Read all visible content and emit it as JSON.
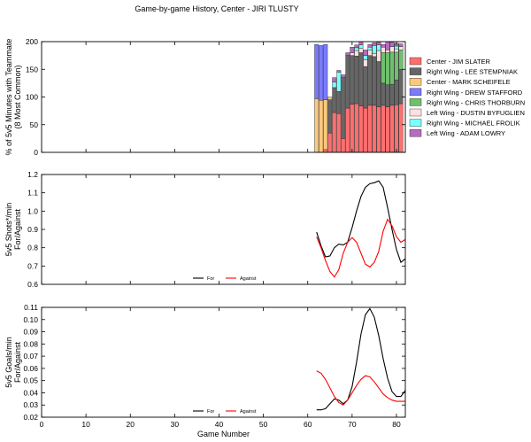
{
  "title": "Game-by-game History, Center - JIRI TLUSTY",
  "colors": {
    "for_line": "#000000",
    "against_line": "#ff0000"
  },
  "chart_data": [
    {
      "type": "bar",
      "stacked": true,
      "ylabel": "% of 5v5 Minutes with Teammate\n(8 Most Common)",
      "xlim": [
        0,
        82
      ],
      "ylim": [
        0,
        200
      ],
      "yticks": [
        "0",
        "50",
        "100",
        "150",
        "200"
      ],
      "x": [
        62,
        63,
        64,
        65,
        66,
        67,
        68,
        69,
        70,
        71,
        72,
        73,
        74,
        75,
        76,
        77,
        78,
        79,
        80,
        81
      ],
      "series": [
        {
          "name": "Center - JIM SLATER",
          "color": "#ff6f6f",
          "values": [
            0,
            0,
            5,
            35,
            72,
            70,
            25,
            80,
            87,
            88,
            84,
            80,
            85,
            85,
            82,
            85,
            82,
            85,
            86,
            88
          ]
        },
        {
          "name": "Right Wing - LEE STEMPNIAK",
          "color": "#666666",
          "values": [
            0,
            0,
            0,
            60,
            45,
            40,
            110,
            95,
            88,
            86,
            96,
            75,
            90,
            88,
            82,
            40,
            40,
            38,
            45,
            62
          ]
        },
        {
          "name": "Center - MARK SCHEIFELE",
          "color": "#fbc97e",
          "values": [
            97,
            94,
            90,
            5,
            0,
            0,
            0,
            0,
            0,
            0,
            0,
            0,
            0,
            0,
            0,
            0,
            0,
            0,
            0,
            0
          ]
        },
        {
          "name": "Right Wing - DREW STAFFORD",
          "color": "#7b7bff",
          "values": [
            98,
            99,
            100,
            0,
            0,
            0,
            0,
            0,
            0,
            0,
            0,
            0,
            0,
            0,
            0,
            0,
            0,
            0,
            0,
            0
          ]
        },
        {
          "name": "Right Wing - CHRIS THORBURN",
          "color": "#6fbf6f",
          "values": [
            0,
            0,
            0,
            0,
            0,
            0,
            0,
            0,
            0,
            0,
            0,
            0,
            0,
            0,
            0,
            55,
            58,
            58,
            50,
            35
          ]
        },
        {
          "name": "Left Wing - DUSTIN BYFUGLIEN",
          "color": "#ffe0e0",
          "values": [
            0,
            0,
            0,
            0,
            0,
            0,
            0,
            0,
            5,
            10,
            8,
            12,
            10,
            5,
            20,
            10,
            5,
            10,
            6,
            6
          ]
        },
        {
          "name": "Right Wing - MICHAEL FROLIK",
          "color": "#7bffff",
          "values": [
            0,
            0,
            0,
            0,
            10,
            35,
            0,
            0,
            0,
            5,
            6,
            8,
            5,
            15,
            10,
            0,
            0,
            0,
            5,
            0
          ]
        },
        {
          "name": "Left Wing - ADAM LOWRY",
          "color": "#b86bbf",
          "values": [
            0,
            0,
            0,
            0,
            8,
            3,
            5,
            5,
            10,
            5,
            6,
            10,
            5,
            5,
            5,
            5,
            15,
            8,
            5,
            5
          ]
        }
      ]
    },
    {
      "type": "line",
      "ylabel": "5v5 Shots*/min\nFor/Against",
      "xlim": [
        0,
        82
      ],
      "ylim": [
        0.6,
        1.2
      ],
      "yticks": [
        "0.6",
        "0.7",
        "0.8",
        "0.9",
        "1.0",
        "1.1",
        "1.2"
      ],
      "series": [
        {
          "name": "For",
          "points": [
            [
              62,
              0.885
            ],
            [
              63,
              0.81
            ],
            [
              64,
              0.75
            ],
            [
              65,
              0.755
            ],
            [
              66,
              0.8
            ],
            [
              67,
              0.82
            ],
            [
              68,
              0.815
            ],
            [
              69,
              0.83
            ],
            [
              70,
              0.91
            ],
            [
              71,
              1.0
            ],
            [
              72,
              1.08
            ],
            [
              73,
              1.13
            ],
            [
              74,
              1.15
            ],
            [
              75,
              1.155
            ],
            [
              76,
              1.165
            ],
            [
              77,
              1.13
            ],
            [
              78,
              1.02
            ],
            [
              79,
              0.9
            ],
            [
              80,
              0.79
            ],
            [
              81,
              0.72
            ],
            [
              82,
              0.74
            ]
          ]
        },
        {
          "name": "Against",
          "points": [
            [
              62,
              0.86
            ],
            [
              63,
              0.8
            ],
            [
              64,
              0.73
            ],
            [
              65,
              0.67
            ],
            [
              66,
              0.64
            ],
            [
              67,
              0.68
            ],
            [
              68,
              0.77
            ],
            [
              69,
              0.83
            ],
            [
              70,
              0.855
            ],
            [
              71,
              0.83
            ],
            [
              72,
              0.77
            ],
            [
              73,
              0.71
            ],
            [
              74,
              0.695
            ],
            [
              75,
              0.72
            ],
            [
              76,
              0.78
            ],
            [
              77,
              0.89
            ],
            [
              78,
              0.955
            ],
            [
              79,
              0.92
            ],
            [
              80,
              0.86
            ],
            [
              81,
              0.83
            ],
            [
              82,
              0.845
            ]
          ]
        }
      ]
    },
    {
      "type": "line",
      "ylabel": "5v5 Goals/min\nFor/Against",
      "xlabel": "Game Number",
      "xlim": [
        0,
        82
      ],
      "ylim": [
        0.02,
        0.11
      ],
      "xticks": [
        "0",
        "10",
        "20",
        "30",
        "40",
        "50",
        "60",
        "70",
        "80"
      ],
      "yticks": [
        "0.02",
        "0.03",
        "0.04",
        "0.05",
        "0.06",
        "0.07",
        "0.08",
        "0.09",
        "0.10",
        "0.11"
      ],
      "series": [
        {
          "name": "For",
          "points": [
            [
              62,
              0.026
            ],
            [
              63,
              0.026
            ],
            [
              64,
              0.027
            ],
            [
              65,
              0.031
            ],
            [
              66,
              0.035
            ],
            [
              67,
              0.034
            ],
            [
              68,
              0.031
            ],
            [
              69,
              0.034
            ],
            [
              70,
              0.045
            ],
            [
              71,
              0.065
            ],
            [
              72,
              0.088
            ],
            [
              73,
              0.104
            ],
            [
              74,
              0.109
            ],
            [
              75,
              0.102
            ],
            [
              76,
              0.087
            ],
            [
              77,
              0.068
            ],
            [
              78,
              0.052
            ],
            [
              79,
              0.041
            ],
            [
              80,
              0.037
            ],
            [
              81,
              0.037
            ],
            [
              82,
              0.042
            ]
          ]
        },
        {
          "name": "Against",
          "points": [
            [
              62,
              0.058
            ],
            [
              63,
              0.056
            ],
            [
              64,
              0.051
            ],
            [
              65,
              0.044
            ],
            [
              66,
              0.037
            ],
            [
              67,
              0.032
            ],
            [
              68,
              0.03
            ],
            [
              69,
              0.034
            ],
            [
              70,
              0.04
            ],
            [
              71,
              0.046
            ],
            [
              72,
              0.051
            ],
            [
              73,
              0.054
            ],
            [
              74,
              0.053
            ],
            [
              75,
              0.049
            ],
            [
              76,
              0.044
            ],
            [
              77,
              0.039
            ],
            [
              78,
              0.036
            ],
            [
              79,
              0.034
            ],
            [
              80,
              0.033
            ],
            [
              81,
              0.033
            ],
            [
              82,
              0.033
            ]
          ]
        }
      ]
    }
  ]
}
